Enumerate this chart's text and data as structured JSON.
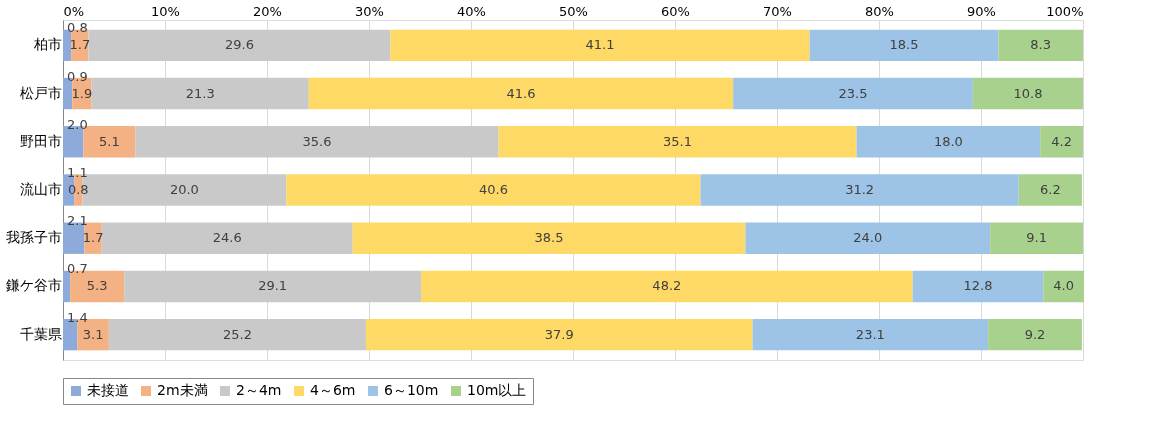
{
  "chart_data": {
    "type": "bar",
    "orientation": "horizontal",
    "stacked": true,
    "grid": "x",
    "legend": "bottom",
    "categories": [
      "柏市",
      "松戸市",
      "野田市",
      "流山市",
      "我孫子市",
      "鎌ケ谷市",
      "千葉県"
    ],
    "xlim": [
      0,
      100
    ],
    "xticks": [
      {
        "value": 0,
        "label": "0%"
      },
      {
        "value": 10,
        "label": "10%"
      },
      {
        "value": 20,
        "label": "20%"
      },
      {
        "value": 30,
        "label": "30%"
      },
      {
        "value": 40,
        "label": "40%"
      },
      {
        "value": 50,
        "label": "50%"
      },
      {
        "value": 60,
        "label": "60%"
      },
      {
        "value": 70,
        "label": "70%"
      },
      {
        "value": 80,
        "label": "80%"
      },
      {
        "value": 90,
        "label": "90%"
      },
      {
        "value": 100,
        "label": "100%"
      }
    ],
    "series": [
      {
        "name": "未接道",
        "color": "#8eaadb",
        "values": [
          0.8,
          0.9,
          2.0,
          1.1,
          2.1,
          0.7,
          1.4
        ],
        "value_labels": [
          "0.8",
          "0.9",
          "2.0",
          "1.1",
          "2.1",
          "0.7",
          "1.4"
        ]
      },
      {
        "name": "2m未満",
        "color": "#f4b183",
        "values": [
          1.7,
          1.9,
          5.1,
          0.8,
          1.7,
          5.3,
          3.1
        ],
        "value_labels": [
          "1.7",
          "1.9",
          "5.1",
          "0.8",
          "1.7",
          "5.3",
          "3.1"
        ]
      },
      {
        "name": "2～4m",
        "color": "#c9c9c9",
        "values": [
          29.6,
          21.3,
          35.6,
          20.0,
          24.6,
          29.1,
          25.2
        ],
        "value_labels": [
          "29.6",
          "21.3",
          "35.6",
          "20.0",
          "24.6",
          "29.1",
          "25.2"
        ]
      },
      {
        "name": "4～6m",
        "color": "#ffd966",
        "values": [
          41.1,
          41.6,
          35.1,
          40.6,
          38.5,
          48.2,
          37.9
        ],
        "value_labels": [
          "41.1",
          "41.6",
          "35.1",
          "40.6",
          "38.5",
          "48.2",
          "37.9"
        ]
      },
      {
        "name": "6～10m",
        "color": "#9dc3e6",
        "values": [
          18.5,
          23.5,
          18.0,
          31.2,
          24.0,
          12.8,
          23.1
        ],
        "value_labels": [
          "18.5",
          "23.5",
          "18.0",
          "31.2",
          "24.0",
          "12.8",
          "23.1"
        ]
      },
      {
        "name": "10m以上",
        "color": "#a9d18e",
        "values": [
          8.3,
          10.8,
          4.2,
          6.2,
          9.1,
          4.0,
          9.2
        ],
        "value_labels": [
          "8.3",
          "10.8",
          "4.2",
          "6.2",
          "9.1",
          "4.0",
          "9.2"
        ]
      }
    ]
  }
}
